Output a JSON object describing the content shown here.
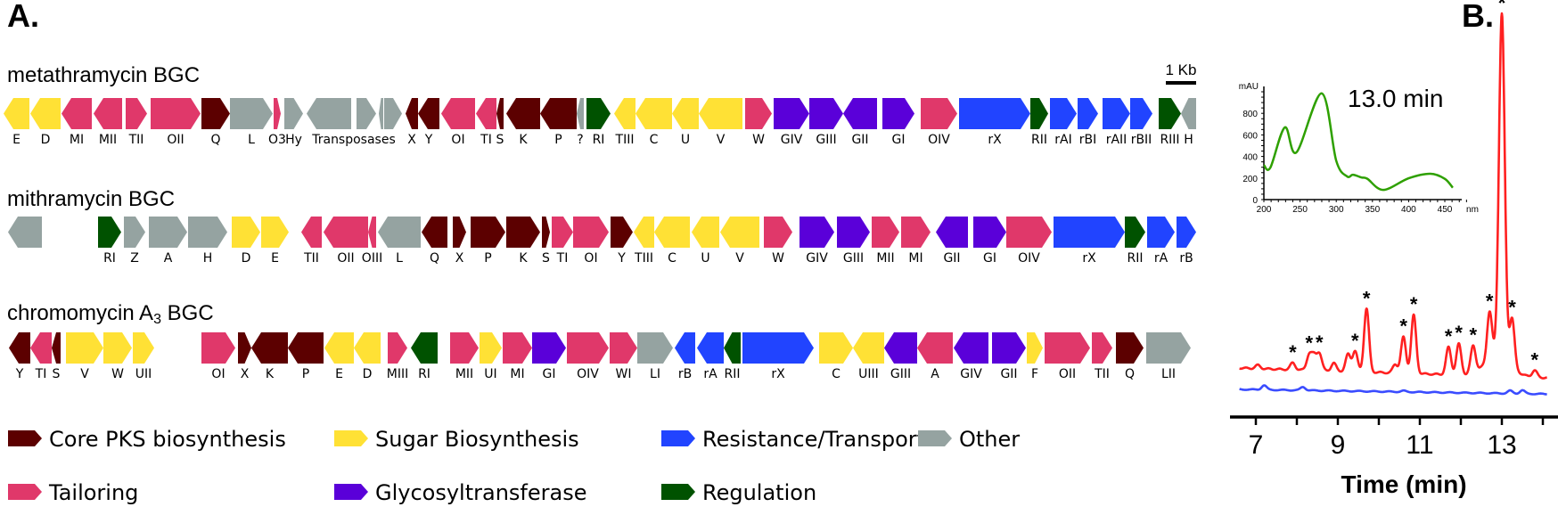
{
  "panel_a": {
    "label": "A.",
    "scale_bar": "1 Kb",
    "category_colors": {
      "core": "#5c0000",
      "sugar": "#ffe135",
      "resistance": "#2144ff",
      "other": "#95a3a1",
      "tailoring": "#e0386a",
      "glyco": "#5a00d9",
      "regulation": "#005200"
    },
    "clusters": [
      {
        "title": "metathramycin BGC",
        "title_sub": "",
        "title_end": "",
        "group_label": "Transposases",
        "genes": [
          [
            "E",
            "sugar",
            "L"
          ],
          [
            "D",
            "sugar",
            "L"
          ],
          [
            "MI",
            "tailoring",
            "L"
          ],
          [
            "MII",
            "tailoring",
            "L"
          ],
          [
            "TII",
            "tailoring",
            "R"
          ],
          [
            "OII",
            "tailoring",
            "R"
          ],
          [
            "Q",
            "core",
            "R"
          ],
          [
            "L",
            "other",
            "R"
          ],
          [
            "O3",
            "tailoring",
            "R"
          ],
          [
            "Hy",
            "other",
            "R"
          ],
          [
            "",
            "other",
            "L"
          ],
          [
            "",
            "other",
            "R"
          ],
          [
            "",
            "other",
            "L"
          ],
          [
            "",
            "other",
            "R"
          ],
          [
            "X",
            "core",
            "L"
          ],
          [
            "Y",
            "core",
            "L"
          ],
          [
            "OI",
            "tailoring",
            "L"
          ],
          [
            "TI",
            "tailoring",
            "L"
          ],
          [
            "S",
            "core",
            "L"
          ],
          [
            "K",
            "core",
            "L"
          ],
          [
            "P",
            "core",
            "L"
          ],
          [
            "?",
            "other",
            "L"
          ],
          [
            "RI",
            "regulation",
            "R"
          ],
          [
            "TIII",
            "sugar",
            "L"
          ],
          [
            "C",
            "sugar",
            "L"
          ],
          [
            "U",
            "sugar",
            "L"
          ],
          [
            "V",
            "sugar",
            "L"
          ],
          [
            "W",
            "tailoring",
            "R"
          ],
          [
            "GIV",
            "glyco",
            "R"
          ],
          [
            "GIII",
            "glyco",
            "R"
          ],
          [
            "GII",
            "glyco",
            "L"
          ],
          [
            "GI",
            "glyco",
            "R"
          ],
          [
            "OIV",
            "tailoring",
            "R"
          ],
          [
            "rX",
            "resistance",
            "R"
          ],
          [
            "RII",
            "regulation",
            "R"
          ],
          [
            "rAI",
            "resistance",
            "R"
          ],
          [
            "rBI",
            "resistance",
            "R"
          ],
          [
            "rAII",
            "resistance",
            "R"
          ],
          [
            "rBII",
            "resistance",
            "R"
          ],
          [
            "RIII",
            "regulation",
            "R"
          ],
          [
            "H",
            "other",
            "L"
          ]
        ]
      },
      {
        "title": "mithramycin BGC",
        "title_sub": "",
        "title_end": "",
        "group_label": "",
        "genes": [
          [
            "",
            "other",
            "L"
          ],
          [
            "RI",
            "regulation",
            "R"
          ],
          [
            "Z",
            "other",
            "R"
          ],
          [
            "A",
            "other",
            "R"
          ],
          [
            "H",
            "other",
            "R"
          ],
          [
            "D",
            "sugar",
            "R"
          ],
          [
            "E",
            "sugar",
            "R"
          ],
          [
            "TII",
            "tailoring",
            "L"
          ],
          [
            "OII",
            "tailoring",
            "L"
          ],
          [
            "OIII",
            "tailoring",
            "L"
          ],
          [
            "L",
            "other",
            "L"
          ],
          [
            "Q",
            "core",
            "L"
          ],
          [
            "X",
            "core",
            "R"
          ],
          [
            "P",
            "core",
            "R"
          ],
          [
            "K",
            "core",
            "R"
          ],
          [
            "S",
            "core",
            "R"
          ],
          [
            "TI",
            "tailoring",
            "R"
          ],
          [
            "OI",
            "tailoring",
            "R"
          ],
          [
            "Y",
            "core",
            "R"
          ],
          [
            "TIII",
            "sugar",
            "L"
          ],
          [
            "C",
            "sugar",
            "L"
          ],
          [
            "U",
            "sugar",
            "L"
          ],
          [
            "V",
            "sugar",
            "L"
          ],
          [
            "W",
            "tailoring",
            "R"
          ],
          [
            "GIV",
            "glyco",
            "R"
          ],
          [
            "GIII",
            "glyco",
            "R"
          ],
          [
            "MII",
            "tailoring",
            "R"
          ],
          [
            "MI",
            "tailoring",
            "R"
          ],
          [
            "GII",
            "glyco",
            "L"
          ],
          [
            "GI",
            "glyco",
            "R"
          ],
          [
            "OIV",
            "tailoring",
            "R"
          ],
          [
            "rX",
            "resistance",
            "R"
          ],
          [
            "RII",
            "regulation",
            "R"
          ],
          [
            "rA",
            "resistance",
            "R"
          ],
          [
            "rB",
            "resistance",
            "R"
          ]
        ]
      },
      {
        "title": "chromomycin A",
        "title_sub": "3",
        "title_end": " BGC",
        "group_label": "",
        "genes": [
          [
            "Y",
            "core",
            "L"
          ],
          [
            "TI",
            "tailoring",
            "L"
          ],
          [
            "S",
            "core",
            "L"
          ],
          [
            "V",
            "sugar",
            "R"
          ],
          [
            "W",
            "sugar",
            "R"
          ],
          [
            "UII",
            "sugar",
            "R"
          ],
          [
            "OI",
            "tailoring",
            "R"
          ],
          [
            "X",
            "core",
            "R"
          ],
          [
            "K",
            "core",
            "L"
          ],
          [
            "P",
            "core",
            "L"
          ],
          [
            "E",
            "sugar",
            "L"
          ],
          [
            "D",
            "sugar",
            "L"
          ],
          [
            "MIII",
            "tailoring",
            "R"
          ],
          [
            "RI",
            "regulation",
            "L"
          ],
          [
            "MII",
            "tailoring",
            "R"
          ],
          [
            "UI",
            "sugar",
            "R"
          ],
          [
            "MI",
            "tailoring",
            "R"
          ],
          [
            "GI",
            "glyco",
            "R"
          ],
          [
            "OIV",
            "tailoring",
            "R"
          ],
          [
            "WI",
            "tailoring",
            "R"
          ],
          [
            "LI",
            "other",
            "R"
          ],
          [
            "rB",
            "resistance",
            "L"
          ],
          [
            "rA",
            "resistance",
            "L"
          ],
          [
            "RII",
            "regulation",
            "L"
          ],
          [
            "rX",
            "resistance",
            "R"
          ],
          [
            "C",
            "sugar",
            "R"
          ],
          [
            "UIII",
            "sugar",
            "L"
          ],
          [
            "GIII",
            "glyco",
            "L"
          ],
          [
            "A",
            "tailoring",
            "L"
          ],
          [
            "GIV",
            "glyco",
            "L"
          ],
          [
            "GII",
            "glyco",
            "R"
          ],
          [
            "F",
            "sugar",
            "R"
          ],
          [
            "OII",
            "tailoring",
            "R"
          ],
          [
            "TII",
            "tailoring",
            "R"
          ],
          [
            "Q",
            "core",
            "R"
          ],
          [
            "LII",
            "other",
            "R"
          ]
        ]
      }
    ],
    "legend": [
      {
        "key": "core",
        "label": "Core PKS biosynthesis"
      },
      {
        "key": "sugar",
        "label": "Sugar Biosynthesis"
      },
      {
        "key": "resistance",
        "label": "Resistance/Transport"
      },
      {
        "key": "other",
        "label": "Other"
      },
      {
        "key": "tailoring",
        "label": "Tailoring"
      },
      {
        "key": "glyco",
        "label": "Glycosyltransferase"
      },
      {
        "key": "regulation",
        "label": "Regulation"
      }
    ]
  },
  "panel_b": {
    "label": "B.",
    "chart_data": [
      {
        "type": "line",
        "title": "",
        "xlabel": "Time (min)",
        "ylabel": "",
        "xlim": [
          6.5,
          14.2
        ],
        "x_ticks": [
          7,
          8,
          9,
          10,
          11,
          12,
          13,
          14
        ],
        "x_tick_labels": [
          "7",
          "9",
          "11",
          "13"
        ],
        "grid": false,
        "series": [
          {
            "color": "#ff2020",
            "peaks_retention_min": [
              7.05,
              7.9,
              8.3,
              8.42,
              8.55,
              8.9,
              9.25,
              9.42,
              9.7,
              10.4,
              10.6,
              10.85,
              11.7,
              11.95,
              12.3,
              12.7,
              12.9,
              13.0,
              13.25,
              13.8
            ],
            "peaks_relative_height_pct": [
              1,
              2,
              4.5,
              4,
              5,
              2.3,
              5,
              6,
              18.5,
              2.5,
              10.5,
              17,
              8,
              9,
              8,
              14,
              6,
              100,
              14,
              2
            ]
          },
          {
            "color": "#3a4cff",
            "peaks_retention_min": [
              7.2,
              8.15,
              10.6,
              13.2,
              13.5
            ],
            "peaks_relative_height_pct": [
              1.3,
              1,
              0.3,
              0.8,
              1
            ]
          }
        ],
        "annotations": {
          "marker": "*",
          "retention_min": [
            7.9,
            8.3,
            8.55,
            9.42,
            9.7,
            10.6,
            10.85,
            11.7,
            11.95,
            12.3,
            12.7,
            13.0,
            13.25,
            13.8
          ]
        }
      },
      {
        "type": "line",
        "title": "13.0 min",
        "xlabel": "nm",
        "ylabel": "mAU",
        "xlim": [
          200,
          480
        ],
        "ylim": [
          0,
          1000
        ],
        "x_tick_labels": [
          "200",
          "250",
          "300",
          "350",
          "400",
          "450"
        ],
        "y_tick_labels": [
          "0",
          "200",
          "400",
          "600",
          "800"
        ],
        "color": "#2ea000",
        "points": [
          [
            200,
            320
          ],
          [
            209,
            297
          ],
          [
            229,
            670
          ],
          [
            245,
            438
          ],
          [
            280,
            985
          ],
          [
            300,
            360
          ],
          [
            315,
            215
          ],
          [
            323,
            230
          ],
          [
            335,
            205
          ],
          [
            343,
            193
          ],
          [
            365,
            90
          ],
          [
            400,
            198
          ],
          [
            430,
            240
          ],
          [
            450,
            193
          ],
          [
            461,
            110
          ]
        ]
      }
    ]
  }
}
